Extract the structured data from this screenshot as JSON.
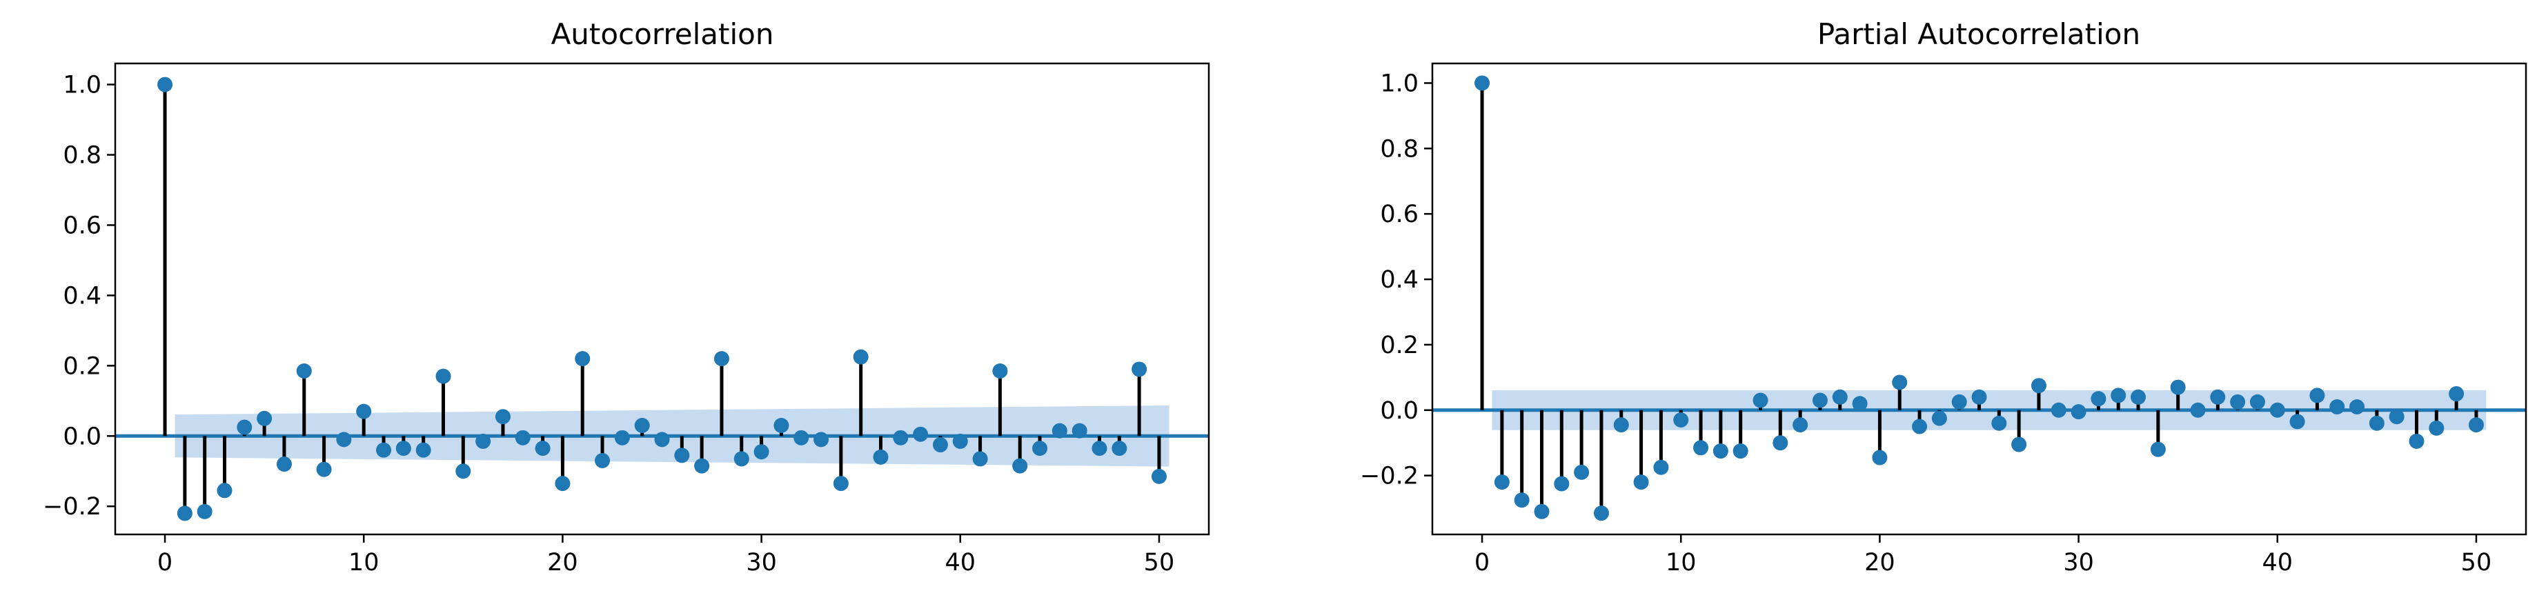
{
  "colors": {
    "marker": "#1f77b4",
    "stem": "#000000",
    "confidence_band": "#c6dbef",
    "zero_line": "#1f77b4"
  },
  "chart_data": [
    {
      "type": "stem",
      "title": "Autocorrelation",
      "xlabel": "",
      "ylabel": "",
      "xlim": [
        -2.5,
        52.5
      ],
      "ylim": [
        -0.28,
        1.06
      ],
      "xticks": [
        0,
        10,
        20,
        30,
        40,
        50
      ],
      "yticks": [
        -0.2,
        0.0,
        0.2,
        0.4,
        0.6,
        0.8,
        1.0
      ],
      "xtick_labels": [
        "0",
        "10",
        "20",
        "30",
        "40",
        "50"
      ],
      "ytick_labels": [
        "−0.2",
        "0.0",
        "0.2",
        "0.4",
        "0.6",
        "0.8",
        "1.0"
      ],
      "grid": false,
      "lags": [
        0,
        1,
        2,
        3,
        4,
        5,
        6,
        7,
        8,
        9,
        10,
        11,
        12,
        13,
        14,
        15,
        16,
        17,
        18,
        19,
        20,
        21,
        22,
        23,
        24,
        25,
        26,
        27,
        28,
        29,
        30,
        31,
        32,
        33,
        34,
        35,
        36,
        37,
        38,
        39,
        40,
        41,
        42,
        43,
        44,
        45,
        46,
        47,
        48,
        49,
        50
      ],
      "values": [
        1.0,
        -0.22,
        -0.215,
        -0.155,
        0.025,
        0.05,
        -0.08,
        0.185,
        -0.095,
        -0.01,
        0.07,
        -0.04,
        -0.035,
        -0.04,
        0.17,
        -0.1,
        -0.015,
        0.055,
        -0.005,
        -0.035,
        -0.135,
        0.22,
        -0.07,
        -0.005,
        0.03,
        -0.01,
        -0.055,
        -0.085,
        0.22,
        -0.065,
        -0.045,
        0.03,
        -0.005,
        -0.01,
        -0.135,
        0.225,
        -0.06,
        -0.005,
        0.005,
        -0.025,
        -0.015,
        -0.065,
        0.185,
        -0.085,
        -0.035,
        0.015,
        0.015,
        -0.035,
        -0.035,
        0.19,
        -0.115
      ],
      "confint_start": [
        1,
        0.061,
        -0.061
      ],
      "confint_end": [
        50,
        0.087,
        -0.087
      ]
    },
    {
      "type": "stem",
      "title": "Partial Autocorrelation",
      "xlabel": "",
      "ylabel": "",
      "xlim": [
        -2.5,
        52.5
      ],
      "ylim": [
        -0.38,
        1.06
      ],
      "xticks": [
        0,
        10,
        20,
        30,
        40,
        50
      ],
      "yticks": [
        -0.2,
        0.0,
        0.2,
        0.4,
        0.6,
        0.8,
        1.0
      ],
      "xtick_labels": [
        "0",
        "10",
        "20",
        "30",
        "40",
        "50"
      ],
      "ytick_labels": [
        "−0.2",
        "0.0",
        "0.2",
        "0.4",
        "0.6",
        "0.8",
        "1.0"
      ],
      "grid": false,
      "lags": [
        0,
        1,
        2,
        3,
        4,
        5,
        6,
        7,
        8,
        9,
        10,
        11,
        12,
        13,
        14,
        15,
        16,
        17,
        18,
        19,
        20,
        21,
        22,
        23,
        24,
        25,
        26,
        27,
        28,
        29,
        30,
        31,
        32,
        33,
        34,
        35,
        36,
        37,
        38,
        39,
        40,
        41,
        42,
        43,
        44,
        45,
        46,
        47,
        48,
        49,
        50
      ],
      "values": [
        1.0,
        -0.22,
        -0.275,
        -0.31,
        -0.225,
        -0.19,
        -0.315,
        -0.045,
        -0.22,
        -0.175,
        -0.03,
        -0.115,
        -0.125,
        -0.125,
        0.03,
        -0.1,
        -0.045,
        0.03,
        0.04,
        0.02,
        -0.145,
        0.085,
        -0.05,
        -0.025,
        0.025,
        0.04,
        -0.04,
        -0.105,
        0.075,
        0.0,
        -0.005,
        0.035,
        0.045,
        0.04,
        -0.12,
        0.07,
        0.0,
        0.04,
        0.025,
        0.025,
        0.0,
        -0.035,
        0.045,
        0.01,
        0.01,
        -0.04,
        -0.02,
        -0.095,
        -0.055,
        0.05,
        -0.045
      ],
      "confint_start": [
        1,
        0.061,
        -0.061
      ],
      "confint_end": [
        50,
        0.061,
        -0.061
      ]
    }
  ]
}
